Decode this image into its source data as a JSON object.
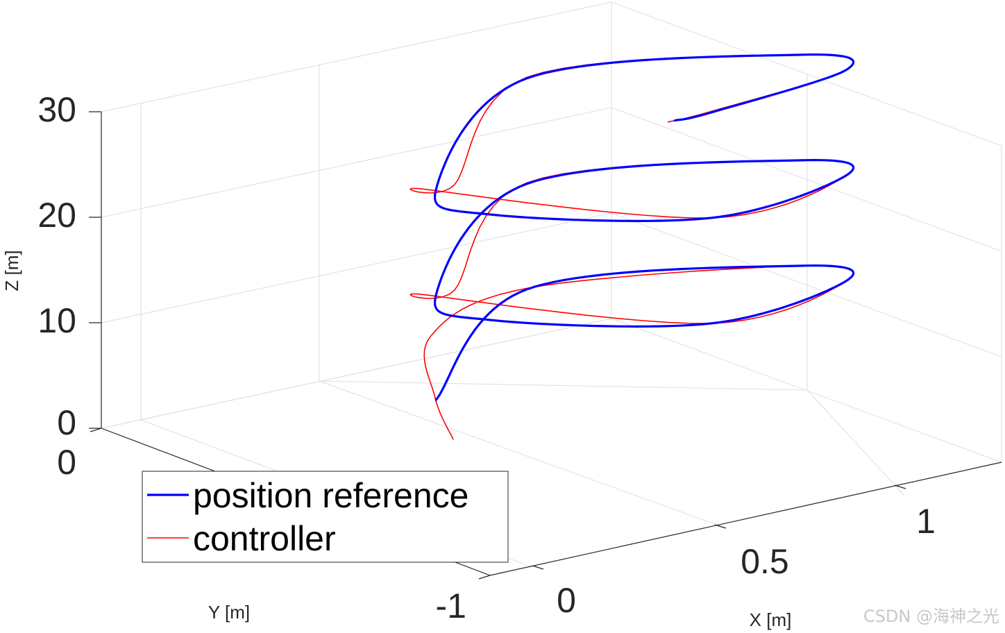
{
  "chart_data": {
    "type": "line",
    "dimensions": "3d",
    "title": "",
    "xlabel": "X [m]",
    "ylabel": "Y [m]",
    "zlabel": "Z [m]",
    "xlim": [
      -0.3,
      1.25
    ],
    "ylim": [
      -1.0,
      0.0
    ],
    "zlim": [
      0,
      35
    ],
    "xticks": [
      "0",
      "0.5",
      "1"
    ],
    "yticks": [
      "-1",
      "0"
    ],
    "zticks": [
      "0",
      "10",
      "20",
      "30"
    ],
    "grid": true,
    "legend_position": "bottom-left",
    "colors": {
      "reference": "#0000ff",
      "controller": "#ff0000"
    },
    "series": [
      {
        "name": "position reference",
        "description_of_shape": "helix",
        "x": [
          0.0,
          0.5,
          1.0,
          0.96,
          0.5,
          0.04,
          0.0,
          0.5,
          1.0,
          0.96,
          0.5,
          0.04,
          0.0,
          0.5,
          1.0,
          0.96,
          0.5,
          0.4
        ],
        "y": [
          -0.5,
          -0.97,
          -0.5,
          -0.2,
          -0.03,
          -0.3,
          -0.5,
          -0.97,
          -0.5,
          -0.2,
          -0.03,
          -0.3,
          -0.5,
          -0.97,
          -0.5,
          -0.2,
          -0.03,
          -0.03
        ],
        "z": [
          -2.0,
          0.5,
          3.0,
          4.5,
          5.5,
          7.0,
          8.0,
          10.5,
          13.0,
          14.5,
          15.5,
          17.0,
          18.0,
          20.5,
          23.0,
          24.5,
          25.5,
          25.5
        ]
      },
      {
        "name": "controller",
        "x": [
          0.02,
          0.05,
          0.2,
          0.5,
          1.0,
          0.96,
          0.5,
          0.0,
          0.05,
          0.5,
          1.0,
          0.96,
          0.5,
          0.0,
          0.05,
          0.5,
          1.0,
          0.96,
          0.5,
          0.38
        ],
        "y": [
          -0.45,
          -0.6,
          -0.9,
          -0.97,
          -0.5,
          -0.2,
          -0.03,
          -0.55,
          -0.5,
          -0.97,
          -0.5,
          -0.2,
          -0.03,
          -0.55,
          -0.5,
          -0.97,
          -0.5,
          -0.2,
          -0.03,
          -0.03
        ],
        "z": [
          -5.5,
          -3.0,
          -1.0,
          0.6,
          3.0,
          4.5,
          5.5,
          7.5,
          8.0,
          10.6,
          13.0,
          14.5,
          15.5,
          17.5,
          18.0,
          20.6,
          23.0,
          24.5,
          25.6,
          25.5
        ]
      }
    ]
  },
  "watermark": "CSDN @海神之光"
}
